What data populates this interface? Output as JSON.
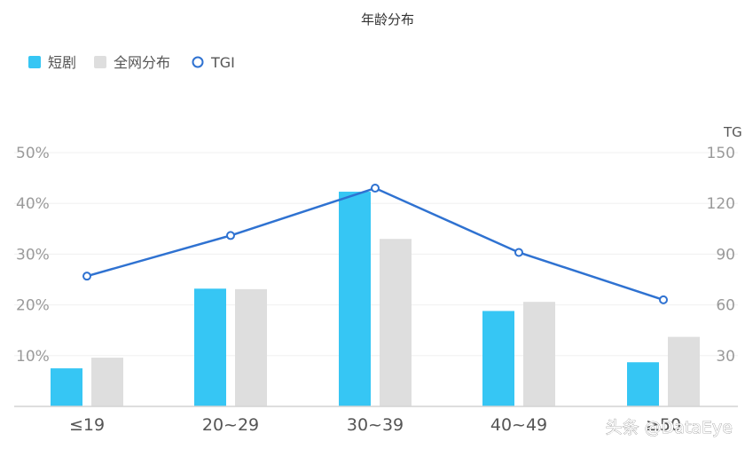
{
  "chart_data": {
    "type": "bar",
    "title": "年龄分布",
    "categories": [
      "≤19",
      "20~29",
      "30~39",
      "40~49",
      "≥50"
    ],
    "series": [
      {
        "name": "短剧",
        "type": "bar",
        "axis": "left",
        "color": "#36c6f4",
        "values": [
          7.5,
          23.2,
          42.3,
          18.8,
          8.7
        ]
      },
      {
        "name": "全网分布",
        "type": "bar",
        "axis": "left",
        "color": "#dedede",
        "values": [
          9.6,
          23.1,
          33.0,
          20.6,
          13.7
        ]
      },
      {
        "name": "TGI",
        "type": "line",
        "axis": "right",
        "color": "#2f72d1",
        "values": [
          77,
          101,
          129,
          91,
          63
        ]
      }
    ],
    "y_left": {
      "ticks": [
        "10%",
        "20%",
        "30%",
        "40%",
        "50%"
      ],
      "tick_values": [
        10,
        20,
        30,
        40,
        50
      ],
      "range": [
        0,
        50
      ]
    },
    "y_right": {
      "label": "TG",
      "ticks": [
        "30",
        "60",
        "90",
        "120",
        "150"
      ],
      "tick_values": [
        30,
        60,
        90,
        120,
        150
      ],
      "range": [
        0,
        150
      ]
    },
    "legend_position": "top-left",
    "grid": true
  },
  "watermark": "头条 @DataEye"
}
